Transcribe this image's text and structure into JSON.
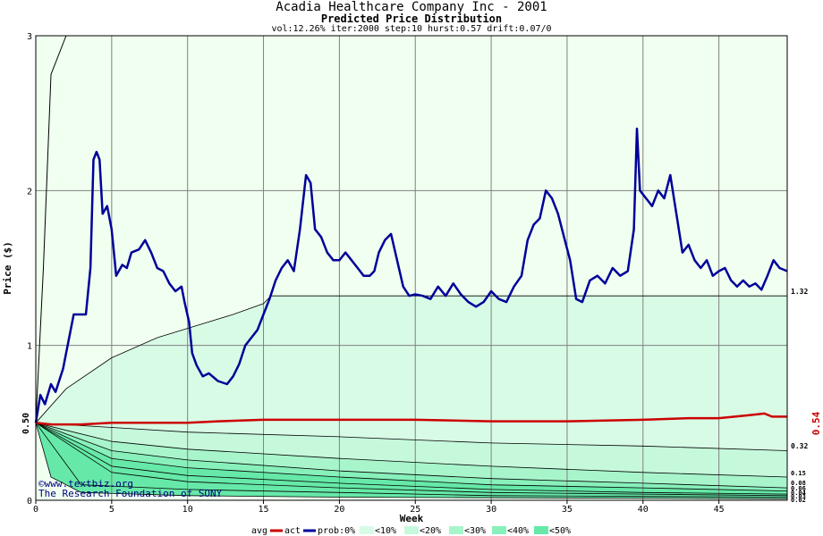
{
  "chart_data": {
    "type": "line",
    "title": "Acadia Healthcare Company Inc - 2001",
    "subtitle": "Predicted Price Distribution",
    "params": "vol:12.26% iter:2000 step:10 hurst:0.57 drift:0.07/0",
    "xlabel": "Week",
    "ylabel": "Price ($)",
    "xlim": [
      0,
      49.5
    ],
    "ylim": [
      0,
      3
    ],
    "x_ticks": [
      0,
      5,
      10,
      15,
      20,
      25,
      30,
      35,
      40,
      45
    ],
    "y_ticks": [
      0,
      1,
      2,
      3
    ],
    "start_price_label": "0.50",
    "right_labels": [
      "1.32",
      "0.32",
      "0.15",
      "0.08",
      "0.06",
      "0.04",
      "0.03",
      "0.02"
    ],
    "last_price_label": "0.54",
    "watermark": [
      "©www.textbiz.org",
      "The Research Foundation of SONY"
    ],
    "legend": {
      "avg": "avg",
      "act": "act",
      "prob0": "prob:0%",
      "p10": "<10%",
      "p20": "<20%",
      "p30": "<30%",
      "p40": "<40%",
      "p50": "<50%"
    },
    "colors": {
      "plot_bg": "#f0fff0",
      "band_0": "#d8fbe6",
      "band_10": "#c6f9dc",
      "band_20": "#a8f5cc",
      "band_30": "#88f0bb",
      "band_40": "#66e9a8",
      "avg_line": "#cc0000",
      "act_line": "#000099",
      "grid": "#808080"
    },
    "envelope_upper": [
      [
        0,
        0.5
      ],
      [
        0.5,
        1.5
      ],
      [
        1,
        2.75
      ],
      [
        2,
        3.0
      ]
    ],
    "p_upper_curve": [
      [
        0,
        0.5
      ],
      [
        2,
        0.72
      ],
      [
        5,
        0.92
      ],
      [
        8,
        1.05
      ],
      [
        11,
        1.14
      ],
      [
        13,
        1.2
      ],
      [
        15,
        1.27
      ],
      [
        15.5,
        1.32
      ],
      [
        49.5,
        1.32
      ]
    ],
    "lower_quantiles": [
      [
        [
          0,
          0.5
        ],
        [
          5,
          0.47
        ],
        [
          10,
          0.44
        ],
        [
          20,
          0.41
        ],
        [
          30,
          0.37
        ],
        [
          40,
          0.35
        ],
        [
          49.5,
          0.32
        ]
      ],
      [
        [
          0,
          0.5
        ],
        [
          5,
          0.38
        ],
        [
          10,
          0.33
        ],
        [
          20,
          0.27
        ],
        [
          30,
          0.22
        ],
        [
          40,
          0.18
        ],
        [
          49.5,
          0.15
        ]
      ],
      [
        [
          0,
          0.5
        ],
        [
          5,
          0.32
        ],
        [
          10,
          0.26
        ],
        [
          20,
          0.19
        ],
        [
          30,
          0.14
        ],
        [
          40,
          0.11
        ],
        [
          49.5,
          0.08
        ]
      ],
      [
        [
          0,
          0.5
        ],
        [
          5,
          0.27
        ],
        [
          10,
          0.21
        ],
        [
          20,
          0.15
        ],
        [
          30,
          0.1
        ],
        [
          40,
          0.08
        ],
        [
          49.5,
          0.06
        ]
      ],
      [
        [
          0,
          0.5
        ],
        [
          5,
          0.22
        ],
        [
          10,
          0.16
        ],
        [
          20,
          0.11
        ],
        [
          30,
          0.07
        ],
        [
          40,
          0.05
        ],
        [
          49.5,
          0.04
        ]
      ],
      [
        [
          0,
          0.5
        ],
        [
          5,
          0.18
        ],
        [
          10,
          0.12
        ],
        [
          20,
          0.08
        ],
        [
          30,
          0.05
        ],
        [
          40,
          0.04
        ],
        [
          49.5,
          0.03
        ]
      ],
      [
        [
          0,
          0.5
        ],
        [
          3,
          0.1
        ],
        [
          10,
          0.07
        ],
        [
          20,
          0.05
        ],
        [
          30,
          0.03
        ],
        [
          40,
          0.025
        ],
        [
          49.5,
          0.02
        ]
      ],
      [
        [
          0,
          0.5
        ],
        [
          1,
          0.15
        ],
        [
          3,
          0.05
        ],
        [
          10,
          0.03
        ],
        [
          20,
          0.02
        ],
        [
          49.5,
          0.01
        ]
      ]
    ],
    "avg_series": [
      [
        0,
        0.5
      ],
      [
        1,
        0.49
      ],
      [
        3,
        0.49
      ],
      [
        5,
        0.5
      ],
      [
        10,
        0.5
      ],
      [
        12,
        0.51
      ],
      [
        15,
        0.52
      ],
      [
        20,
        0.52
      ],
      [
        25,
        0.52
      ],
      [
        30,
        0.51
      ],
      [
        35,
        0.51
      ],
      [
        40,
        0.52
      ],
      [
        43,
        0.53
      ],
      [
        45,
        0.53
      ],
      [
        47,
        0.55
      ],
      [
        48,
        0.56
      ],
      [
        48.5,
        0.54
      ],
      [
        49.5,
        0.54
      ]
    ],
    "act_series": [
      [
        0,
        0.5
      ],
      [
        0.3,
        0.68
      ],
      [
        0.6,
        0.62
      ],
      [
        1,
        0.75
      ],
      [
        1.3,
        0.7
      ],
      [
        1.8,
        0.85
      ],
      [
        2.2,
        1.05
      ],
      [
        2.5,
        1.2
      ],
      [
        3,
        1.2
      ],
      [
        3.3,
        1.2
      ],
      [
        3.6,
        1.5
      ],
      [
        3.8,
        2.2
      ],
      [
        4,
        2.25
      ],
      [
        4.2,
        2.2
      ],
      [
        4.4,
        1.85
      ],
      [
        4.7,
        1.9
      ],
      [
        5,
        1.75
      ],
      [
        5.3,
        1.45
      ],
      [
        5.7,
        1.52
      ],
      [
        6,
        1.5
      ],
      [
        6.3,
        1.6
      ],
      [
        6.8,
        1.62
      ],
      [
        7.2,
        1.68
      ],
      [
        7.6,
        1.6
      ],
      [
        8,
        1.5
      ],
      [
        8.4,
        1.48
      ],
      [
        8.8,
        1.4
      ],
      [
        9.2,
        1.35
      ],
      [
        9.6,
        1.38
      ],
      [
        9.8,
        1.28
      ],
      [
        10.1,
        1.15
      ],
      [
        10.3,
        0.95
      ],
      [
        10.6,
        0.87
      ],
      [
        11,
        0.8
      ],
      [
        11.4,
        0.82
      ],
      [
        12,
        0.77
      ],
      [
        12.6,
        0.75
      ],
      [
        13,
        0.8
      ],
      [
        13.4,
        0.88
      ],
      [
        13.8,
        1.0
      ],
      [
        14.2,
        1.05
      ],
      [
        14.6,
        1.1
      ],
      [
        15,
        1.2
      ],
      [
        15.4,
        1.3
      ],
      [
        15.8,
        1.42
      ],
      [
        16.2,
        1.5
      ],
      [
        16.6,
        1.55
      ],
      [
        17,
        1.48
      ],
      [
        17.4,
        1.75
      ],
      [
        17.8,
        2.1
      ],
      [
        18.1,
        2.05
      ],
      [
        18.4,
        1.75
      ],
      [
        18.8,
        1.7
      ],
      [
        19.2,
        1.6
      ],
      [
        19.6,
        1.55
      ],
      [
        20,
        1.55
      ],
      [
        20.4,
        1.6
      ],
      [
        20.8,
        1.55
      ],
      [
        21.2,
        1.5
      ],
      [
        21.6,
        1.45
      ],
      [
        22,
        1.45
      ],
      [
        22.3,
        1.48
      ],
      [
        22.6,
        1.6
      ],
      [
        23,
        1.68
      ],
      [
        23.4,
        1.72
      ],
      [
        23.8,
        1.55
      ],
      [
        24.2,
        1.38
      ],
      [
        24.6,
        1.32
      ],
      [
        25,
        1.33
      ],
      [
        25.5,
        1.32
      ],
      [
        26,
        1.3
      ],
      [
        26.5,
        1.38
      ],
      [
        27,
        1.32
      ],
      [
        27.5,
        1.4
      ],
      [
        28,
        1.33
      ],
      [
        28.5,
        1.28
      ],
      [
        29,
        1.25
      ],
      [
        29.5,
        1.28
      ],
      [
        30,
        1.35
      ],
      [
        30.5,
        1.3
      ],
      [
        31,
        1.28
      ],
      [
        31.5,
        1.38
      ],
      [
        32,
        1.45
      ],
      [
        32.4,
        1.68
      ],
      [
        32.8,
        1.78
      ],
      [
        33.2,
        1.82
      ],
      [
        33.6,
        2.0
      ],
      [
        34,
        1.95
      ],
      [
        34.4,
        1.85
      ],
      [
        34.8,
        1.7
      ],
      [
        35.2,
        1.55
      ],
      [
        35.6,
        1.3
      ],
      [
        36,
        1.28
      ],
      [
        36.5,
        1.42
      ],
      [
        37,
        1.45
      ],
      [
        37.5,
        1.4
      ],
      [
        38,
        1.5
      ],
      [
        38.5,
        1.45
      ],
      [
        39,
        1.48
      ],
      [
        39.4,
        1.75
      ],
      [
        39.6,
        2.4
      ],
      [
        39.8,
        2.0
      ],
      [
        40.2,
        1.95
      ],
      [
        40.6,
        1.9
      ],
      [
        41,
        2.0
      ],
      [
        41.4,
        1.95
      ],
      [
        41.8,
        2.1
      ],
      [
        42.2,
        1.85
      ],
      [
        42.6,
        1.6
      ],
      [
        43,
        1.65
      ],
      [
        43.4,
        1.55
      ],
      [
        43.8,
        1.5
      ],
      [
        44.2,
        1.55
      ],
      [
        44.6,
        1.45
      ],
      [
        45,
        1.48
      ],
      [
        45.4,
        1.5
      ],
      [
        45.8,
        1.42
      ],
      [
        46.2,
        1.38
      ],
      [
        46.6,
        1.42
      ],
      [
        47,
        1.38
      ],
      [
        47.4,
        1.4
      ],
      [
        47.8,
        1.36
      ],
      [
        48.2,
        1.45
      ],
      [
        48.6,
        1.55
      ],
      [
        49,
        1.5
      ],
      [
        49.5,
        1.48
      ]
    ]
  }
}
